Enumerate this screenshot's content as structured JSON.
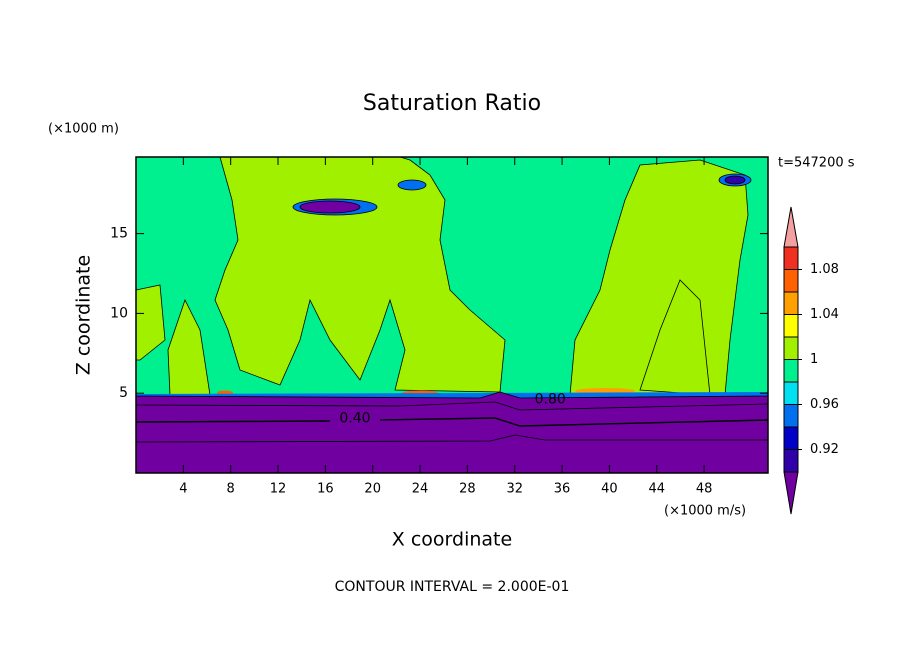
{
  "chart_data": {
    "type": "contour",
    "title": "Saturation Ratio",
    "y_unit": "(×1000 m)",
    "x_unit": "(×1000 m/s)",
    "time_label": "t=547200 s",
    "xlabel": "X coordinate",
    "ylabel": "Z coordinate",
    "footer": "CONTOUR INTERVAL = 2.000E-01",
    "xlim": [
      0,
      53.4
    ],
    "ylim": [
      0,
      19.8
    ],
    "xticks": [
      4,
      8,
      12,
      16,
      20,
      24,
      28,
      32,
      36,
      40,
      44,
      48
    ],
    "yticks": [
      5,
      10,
      15
    ],
    "contour_labels": {
      "values": [
        0.4,
        0.8
      ],
      "value_labels": [
        "0.40",
        "0.80"
      ],
      "x": [
        18.5,
        35
      ],
      "y": [
        3.4,
        4.6
      ]
    },
    "colorbar": {
      "levels": [
        0.9,
        0.92,
        0.94,
        0.96,
        0.98,
        1,
        1.02,
        1.04,
        1.06,
        1.08,
        1.1
      ],
      "colors": [
        "#7000a0",
        "#3000a8",
        "#0000c8",
        "#0070f0",
        "#00e0f0",
        "#00f090",
        "#a0f000",
        "#ffff00",
        "#ffa000",
        "#ff6000",
        "#f03020",
        "#f4a0a0"
      ],
      "ticks": [
        0.92,
        0.96,
        1,
        1.04,
        1.08
      ]
    }
  }
}
